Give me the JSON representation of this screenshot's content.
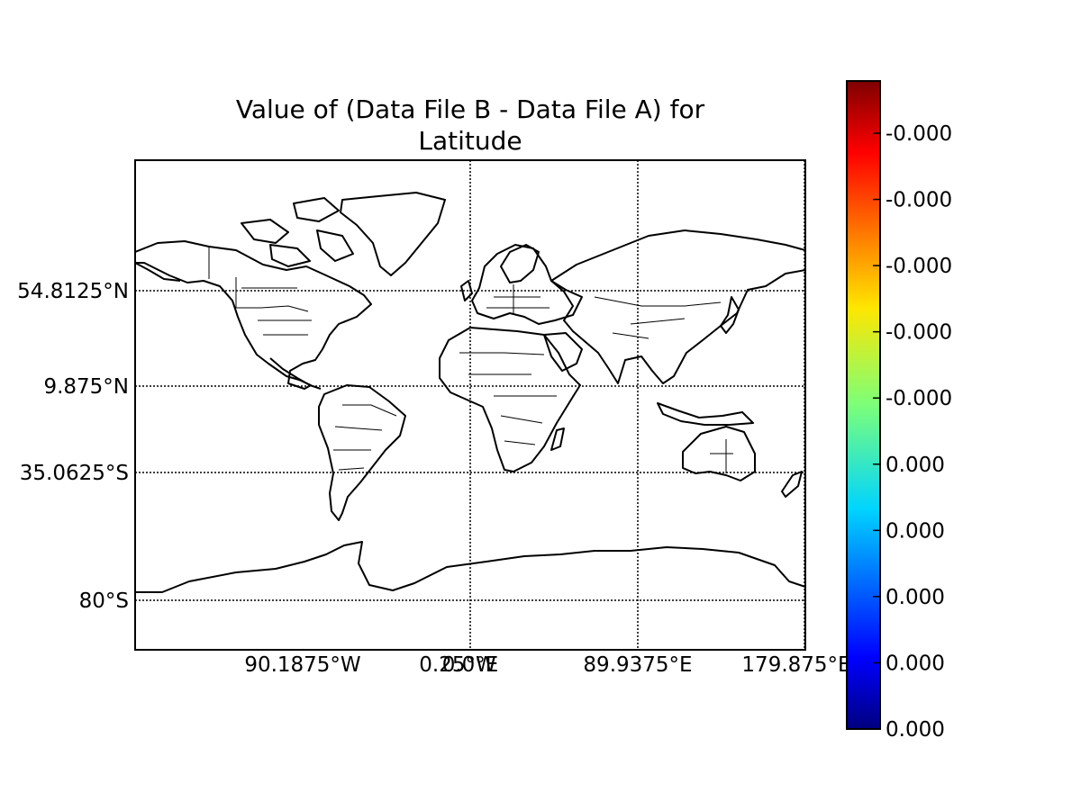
{
  "title_line1": "Value of (Data File B - Data File A) for",
  "title_line2": "Latitude",
  "lat_ticks": [
    "54.8125°N",
    "9.875°N",
    "35.0625°S",
    "80°S"
  ],
  "lon_ticks": [
    "90.1875°W",
    "0.25°W",
    "0.0°E",
    "89.9375°E",
    "179.875°E"
  ],
  "colorbar": {
    "colormap": "jet",
    "tick_labels": [
      "0.000",
      "0.000",
      "0.000",
      "0.000",
      "0.000",
      "-0.000",
      "-0.000",
      "-0.000",
      "-0.000",
      "-0.000"
    ]
  },
  "colors": {
    "land_outline": "#000000",
    "ocean": "#ffffff",
    "gridline": "#000000"
  }
}
